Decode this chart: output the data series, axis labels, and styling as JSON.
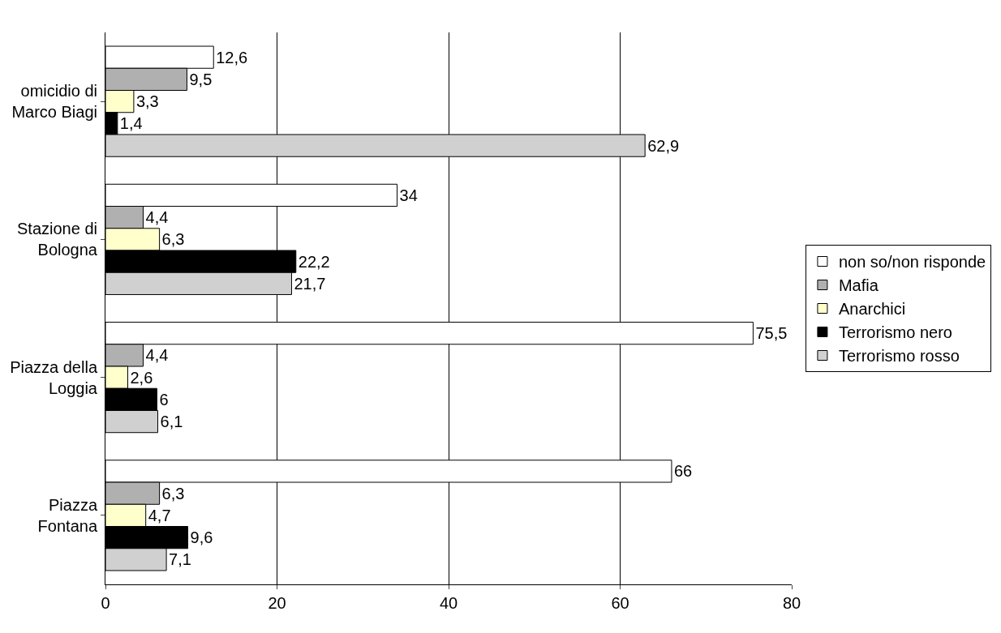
{
  "chart_data": {
    "type": "bar",
    "orientation": "horizontal",
    "categories": [
      "omicidio di Marco Biagi",
      "Stazione di Bologna",
      "Piazza della Loggia",
      "Piazza Fontana"
    ],
    "series": [
      {
        "name": "non so/non risponde",
        "color": "#ffffff",
        "values": [
          12.6,
          34,
          75.5,
          66
        ],
        "value_labels": [
          "12,6",
          "34",
          "75,5",
          "66"
        ]
      },
      {
        "name": "Mafia",
        "color": "#b0b0b0",
        "values": [
          9.5,
          4.4,
          4.4,
          6.3
        ],
        "value_labels": [
          "9,5",
          "4,4",
          "4,4",
          "6,3"
        ]
      },
      {
        "name": "Anarchici",
        "color": "#ffffcc",
        "values": [
          3.3,
          6.3,
          2.6,
          4.7
        ],
        "value_labels": [
          "3,3",
          "6,3",
          "2,6",
          "4,7"
        ]
      },
      {
        "name": "Terrorismo nero",
        "color": "#000000",
        "values": [
          1.4,
          22.2,
          6,
          9.6
        ],
        "value_labels": [
          "1,4",
          "22,2",
          "6",
          "9,6"
        ]
      },
      {
        "name": "Terrorismo rosso",
        "color": "#d0d0d0",
        "values": [
          62.9,
          21.7,
          6.1,
          7.1
        ],
        "value_labels": [
          "62,9",
          "21,7",
          "6,1",
          "7,1"
        ]
      }
    ],
    "xlim": [
      0,
      80
    ],
    "xticks": [
      0,
      20,
      40,
      60,
      80
    ],
    "grid": "x",
    "legend": "right"
  }
}
